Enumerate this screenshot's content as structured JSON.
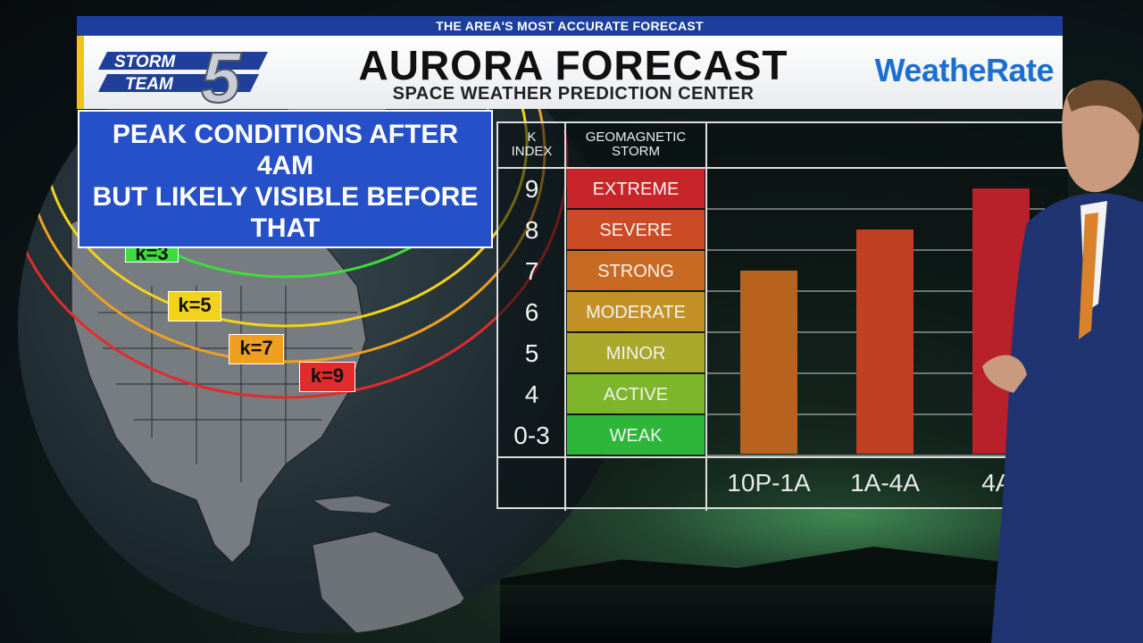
{
  "header": {
    "strip": "THE AREA'S MOST ACCURATE FORECAST",
    "title": "AURORA FORECAST",
    "subtitle": "SPACE WEATHER PREDICTION CENTER",
    "logo_text_1": "STORM",
    "logo_text_2": "TEAM",
    "logo_number": "5",
    "brand": "WeatheRate"
  },
  "callout": {
    "line1": "PEAK CONDITIONS AFTER",
    "line2": "4AM",
    "line3": "BUT LIKELY VISIBLE BEFORE",
    "line4": "THAT"
  },
  "map": {
    "markers": [
      {
        "label": "k=3",
        "color": "#3ddc3d"
      },
      {
        "label": "k=5",
        "color": "#f3d21b"
      },
      {
        "label": "k=7",
        "color": "#f0a020"
      },
      {
        "label": "k=9",
        "color": "#e32b2b"
      }
    ]
  },
  "chart_data": {
    "type": "bar",
    "table_headers": {
      "k_index": "K\nINDEX",
      "storm": "GEOMAGNETIC\nSTORM"
    },
    "scale": [
      {
        "k": "9",
        "storm": "EXTREME",
        "color": "#c8252a"
      },
      {
        "k": "8",
        "storm": "SEVERE",
        "color": "#c94a23"
      },
      {
        "k": "7",
        "storm": "STRONG",
        "color": "#c86a22"
      },
      {
        "k": "6",
        "storm": "MODERATE",
        "color": "#c49127"
      },
      {
        "k": "5",
        "storm": "MINOR",
        "color": "#a9a82a"
      },
      {
        "k": "4",
        "storm": "ACTIVE",
        "color": "#7db52b"
      },
      {
        "k": "0-3",
        "storm": "WEAK",
        "color": "#2db63a"
      }
    ],
    "categories": [
      "10P-1A",
      "1A-4A",
      "4A-"
    ],
    "values": [
      7,
      8,
      9
    ],
    "bar_colors": [
      "#b8621f",
      "#bf4022",
      "#b8202a"
    ]
  }
}
